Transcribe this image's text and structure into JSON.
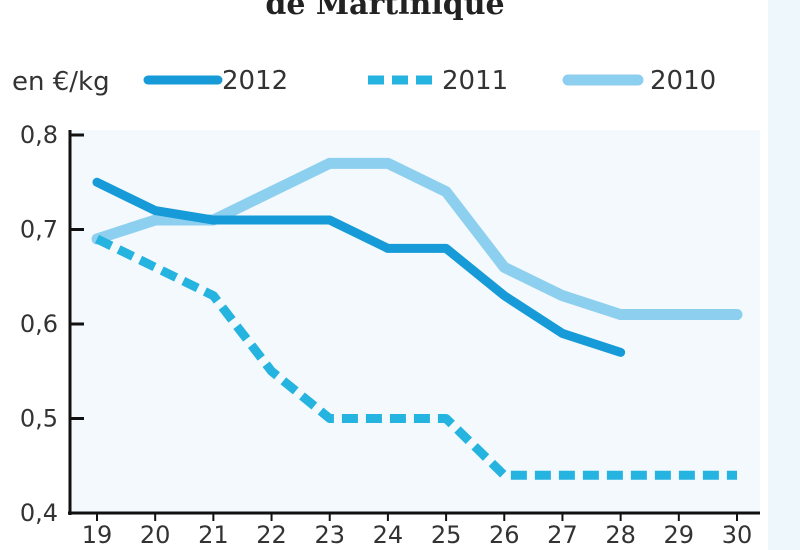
{
  "chart_data": {
    "type": "line",
    "title": "de Martinique",
    "ylabel": "en €/kg",
    "x": [
      19,
      20,
      21,
      22,
      23,
      24,
      25,
      26,
      27,
      28,
      29,
      30
    ],
    "x_tick_labels": [
      "19",
      "20",
      "21",
      "22",
      "23",
      "24",
      "25",
      "26",
      "27",
      "28",
      "29",
      "30"
    ],
    "ylim": [
      0.4,
      0.8
    ],
    "y_ticks": [
      0.4,
      0.5,
      0.6,
      0.7,
      0.8
    ],
    "y_tick_labels": [
      "0,4",
      "0,5",
      "0,6",
      "0,7",
      "0,8"
    ],
    "grid": false,
    "legend_position": "top",
    "series": [
      {
        "name": "2012",
        "color": "#169ad8",
        "style": "solid",
        "values": [
          0.75,
          0.72,
          0.71,
          0.71,
          0.71,
          0.68,
          0.68,
          0.63,
          0.59,
          0.57,
          null,
          null
        ]
      },
      {
        "name": "2011",
        "color": "#25b3e0",
        "style": "dashed",
        "values": [
          0.69,
          0.66,
          0.63,
          0.55,
          0.5,
          0.5,
          0.5,
          0.44,
          0.44,
          0.44,
          0.44,
          0.44
        ]
      },
      {
        "name": "2010",
        "color": "#8dcfee",
        "style": "solid",
        "values": [
          0.69,
          0.71,
          0.71,
          0.74,
          0.77,
          0.77,
          0.74,
          0.66,
          0.63,
          0.61,
          0.61,
          0.61
        ]
      }
    ]
  }
}
